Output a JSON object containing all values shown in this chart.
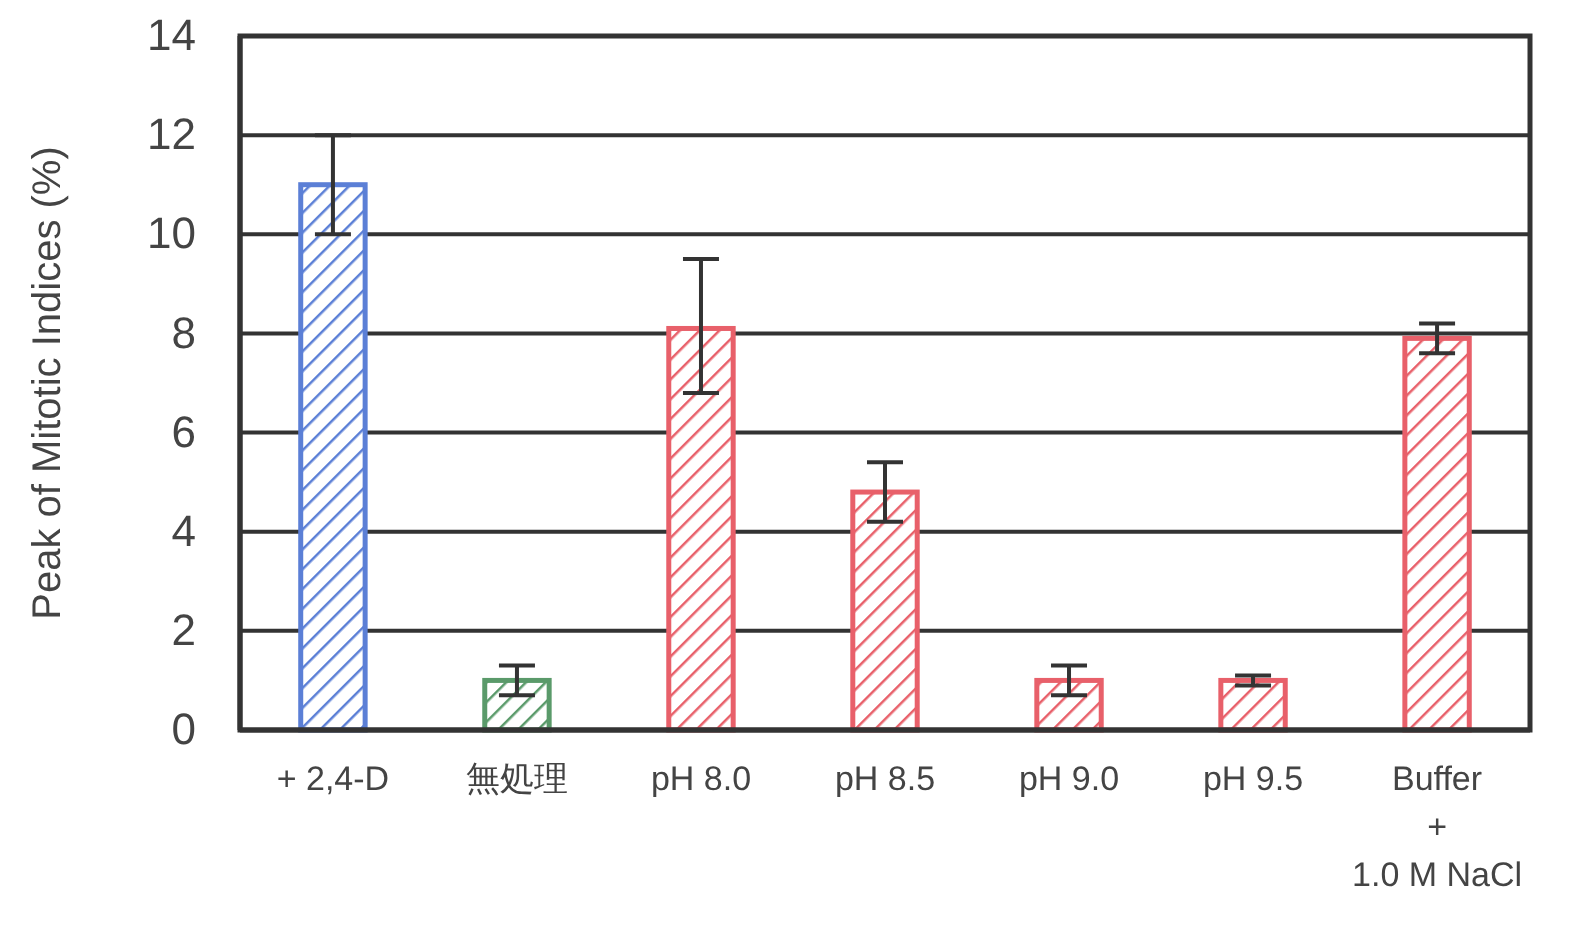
{
  "chart_data": {
    "type": "bar",
    "ylabel": "Peak of Mitotic Indices (%)",
    "categories": [
      "+ 2,4-D",
      "無処理",
      "pH 8.0",
      "pH 8.5",
      "pH 9.0",
      "pH 9.5",
      "Buffer\n+\n1.0 M NaCl"
    ],
    "values": [
      11,
      1.0,
      8.1,
      4.8,
      1.0,
      1.0,
      7.9
    ],
    "errors": [
      1.0,
      0.3,
      [
        6.8,
        9.5
      ],
      0.6,
      0.3,
      0.1,
      0.3
    ],
    "colors": [
      "#5b7fd6",
      "#5a9a6a",
      "#e8606a",
      "#e8606a",
      "#e8606a",
      "#e8606a",
      "#e8606a"
    ],
    "ylim": [
      0,
      14
    ],
    "yticks": [
      0,
      2,
      4,
      6,
      8,
      10,
      12,
      14
    ],
    "grid": "y"
  }
}
